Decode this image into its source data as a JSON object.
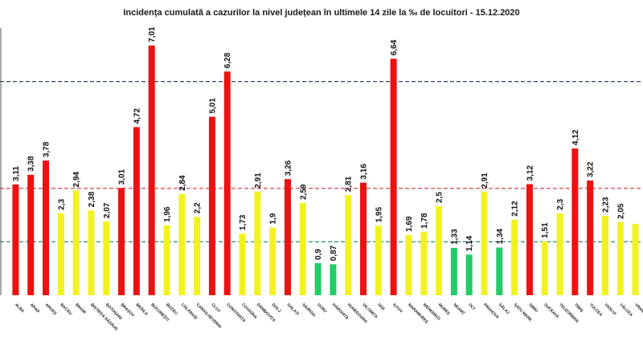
{
  "chart_data": {
    "type": "bar",
    "title": "Incidența cumulată a cazurilor la nivel județean în ultimele 14 zile   la ‰ de locuitori  - 15.12.2020",
    "xlabel": "",
    "ylabel": "",
    "ylim": [
      0,
      7.5
    ],
    "grid": false,
    "legend": "none",
    "categories": [
      "ALBA",
      "ARAD",
      "ARGEȘ",
      "BACĂU",
      "BIHOR",
      "BISTRIȚA NĂSĂUD",
      "BOTOȘANI",
      "BRAȘOV",
      "BRĂILA",
      "BUCUREȘTI",
      "BUZĂU",
      "CĂLĂRAȘI",
      "CARAȘ-SEVERIN",
      "CLUJ",
      "CONSTANȚA",
      "COVASNA",
      "DÂMBOVIȚA",
      "DOLJ",
      "GALAȚI",
      "GIURGIU",
      "GORJ",
      "HARGHITA",
      "HUNEDOARA",
      "IALOMIȚA",
      "IAȘI",
      "ILFOV",
      "MARAMUREȘ",
      "MEHEDINȚI",
      "MUREȘ",
      "NEAMȚ",
      "OLT",
      "PRAHOVA",
      "SĂLAJ",
      "SATU MARE",
      "SIBIU",
      "SUCEAVA",
      "TELEORMAN",
      "TIMIȘ",
      "TULCEA",
      "VASLUI",
      "VÂLCEA",
      "VRANCEA"
    ],
    "values": [
      3.11,
      3.38,
      3.78,
      2.3,
      2.94,
      2.38,
      2.07,
      3.01,
      4.72,
      7.01,
      1.96,
      2.84,
      2.2,
      5.01,
      6.28,
      1.73,
      2.91,
      1.9,
      3.26,
      2.59,
      0.9,
      0.87,
      2.81,
      3.16,
      1.95,
      6.64,
      1.69,
      1.78,
      2.5,
      1.33,
      1.14,
      2.91,
      1.34,
      2.12,
      3.12,
      1.51,
      2.3,
      4.12,
      3.22,
      2.23,
      2.05,
      2.0
    ],
    "value_labels": [
      "3,11",
      "3,38",
      "3,78",
      "2,3",
      "2,94",
      "2,38",
      "2,07",
      "3,01",
      "4,72",
      "7,01",
      "1,96",
      "2,84",
      "2,2",
      "5,01",
      "6,28",
      "1,73",
      "2,91",
      "1,9",
      "3,26",
      "2,59",
      "0,9",
      "0,87",
      "2,81",
      "3,16",
      "1,95",
      "6,64",
      "1,69",
      "1,78",
      "2,5",
      "1,33",
      "1,14",
      "2,91",
      "1,34",
      "2,12",
      "3,12",
      "1,51",
      "2,3",
      "4,12",
      "3,22",
      "2,23",
      "2,05",
      ""
    ],
    "reference_lines": [
      1.5,
      3,
      6
    ],
    "colors": {
      "high": "#ee1111",
      "medium": "#f2f222",
      "low": "#22cc66",
      "ref_line_1_5": "#2a8a7a",
      "ref_line_3": "#cc3333",
      "ref_line_6": "#334466"
    }
  }
}
